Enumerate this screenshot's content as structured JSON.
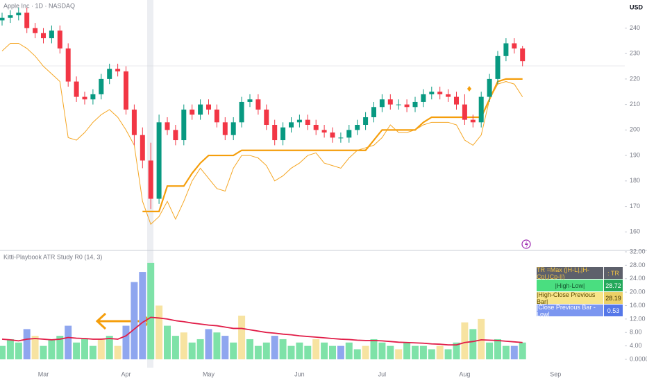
{
  "chart_data": [
    {
      "type": "candlestick",
      "title": "Apple Inc · 1D · NASDAQ",
      "y_axis_label": "USD",
      "up_color": "#089981",
      "down_color": "#f23645",
      "ylim": [
        153,
        251
      ],
      "yticks": [
        160,
        170,
        180,
        190,
        200,
        210,
        220,
        230,
        240
      ],
      "open": [
        243,
        244,
        245,
        246,
        240,
        238,
        236,
        239,
        232,
        219,
        213,
        212,
        214,
        220,
        224,
        223,
        208,
        198,
        188,
        173,
        203,
        200,
        196,
        208,
        206,
        210,
        208,
        203,
        198,
        203,
        211,
        212,
        208,
        202,
        196,
        201,
        203,
        204,
        202,
        200,
        199,
        197,
        197,
        200,
        202,
        205,
        209,
        212,
        210,
        210,
        209,
        211,
        214,
        215,
        214,
        213,
        210,
        204,
        203,
        213,
        220,
        229,
        234,
        232,
        null,
        null,
        null,
        null
      ],
      "high": [
        246,
        247,
        248,
        248,
        242,
        240,
        241,
        241,
        234,
        221,
        215,
        216,
        222,
        226,
        226,
        225,
        210,
        201,
        195,
        206,
        205,
        202,
        210,
        210,
        212,
        212,
        210,
        205,
        205,
        213,
        214,
        214,
        210,
        204,
        203,
        205,
        206,
        206,
        204,
        202,
        201,
        199,
        202,
        204,
        207,
        211,
        214,
        214,
        212,
        212,
        213,
        216,
        217,
        217,
        216,
        215,
        214,
        206,
        215,
        222,
        231,
        236,
        236,
        233,
        null,
        null,
        null,
        null
      ],
      "low": [
        241,
        242,
        243,
        238,
        236,
        234,
        234,
        230,
        217,
        211,
        210,
        210,
        212,
        218,
        221,
        206,
        194,
        185,
        169,
        171,
        198,
        194,
        194,
        204,
        204,
        206,
        201,
        196,
        196,
        201,
        209,
        206,
        200,
        194,
        194,
        199,
        201,
        200,
        198,
        197,
        195,
        195,
        195,
        198,
        200,
        203,
        207,
        208,
        208,
        207,
        207,
        209,
        212,
        212,
        211,
        208,
        202,
        201,
        201,
        211,
        218,
        227,
        230,
        225,
        null,
        null,
        null,
        null
      ],
      "close": [
        244,
        245,
        246,
        240,
        238,
        236,
        239,
        232,
        219,
        213,
        212,
        214,
        220,
        224,
        223,
        208,
        198,
        188,
        173,
        203,
        200,
        196,
        208,
        206,
        210,
        208,
        203,
        198,
        203,
        211,
        212,
        208,
        202,
        196,
        201,
        203,
        204,
        202,
        200,
        199,
        197,
        197,
        200,
        202,
        205,
        209,
        212,
        210,
        210,
        209,
        211,
        214,
        215,
        214,
        213,
        210,
        204,
        203,
        213,
        220,
        229,
        234,
        232,
        227,
        null,
        null,
        null,
        null
      ],
      "series": [
        {
          "color": "#f59e0b",
          "width": 2.2,
          "values": [
            null,
            null,
            null,
            null,
            null,
            null,
            null,
            null,
            null,
            null,
            null,
            null,
            null,
            null,
            null,
            null,
            null,
            168,
            168,
            168,
            178,
            178,
            178,
            183,
            187,
            190,
            190,
            190,
            190,
            192,
            192,
            192,
            192,
            192,
            192,
            192,
            192,
            192,
            192,
            192,
            192,
            192,
            192,
            192,
            192,
            196,
            200,
            200,
            200,
            200,
            200,
            203,
            205,
            205,
            205,
            205,
            205,
            205,
            205,
            212,
            219,
            220,
            220,
            220,
            null,
            null,
            null,
            null
          ]
        },
        {
          "color": "#f5a623",
          "width": 1,
          "values": [
            231,
            234,
            234,
            232,
            229,
            225,
            222,
            219,
            197,
            196,
            199,
            203,
            206,
            208,
            205,
            200,
            194,
            172,
            163,
            166,
            172,
            165,
            172,
            180,
            185,
            181,
            177,
            176,
            185,
            190,
            190,
            189,
            186,
            180,
            182,
            185,
            187,
            190,
            191,
            187,
            186,
            185,
            189,
            192,
            193,
            194,
            197,
            202,
            199,
            199,
            200,
            202,
            203,
            203,
            203,
            202,
            196,
            194,
            198,
            212,
            218,
            219,
            218,
            213,
            null,
            null,
            null,
            null
          ]
        }
      ]
    },
    {
      "type": "bar",
      "title": "Kitti-Playbook ATR Study R0 (14, 3)",
      "categories": [
        null,
        null,
        null,
        null,
        null,
        "Mar",
        null,
        null,
        null,
        null,
        null,
        null,
        null,
        null,
        null,
        "Apr",
        null,
        null,
        null,
        null,
        null,
        null,
        null,
        null,
        null,
        "May",
        null,
        null,
        null,
        null,
        null,
        null,
        null,
        null,
        null,
        null,
        "Jun",
        null,
        null,
        null,
        null,
        null,
        null,
        null,
        null,
        null,
        "Jul",
        null,
        null,
        null,
        null,
        null,
        null,
        null,
        null,
        null,
        "Aug",
        null,
        null,
        null,
        null,
        null,
        null,
        null,
        null,
        null,
        null,
        "Sep"
      ],
      "ylim": [
        0,
        32
      ],
      "yticks": [
        {
          "value": 0,
          "label": "0.0000"
        },
        {
          "value": 4,
          "label": "4.00"
        },
        {
          "value": 8,
          "label": "8.00"
        },
        {
          "value": 12,
          "label": "12.00"
        },
        {
          "value": 16,
          "label": "16.00"
        },
        {
          "value": 20,
          "label": "20.00"
        },
        {
          "value": 24,
          "label": "24.00"
        },
        {
          "value": 28,
          "label": "28.00"
        },
        {
          "value": 32,
          "label": "32.00"
        }
      ],
      "values": [
        4,
        6,
        5,
        9,
        7,
        4,
        6,
        7,
        10,
        5,
        6,
        4,
        6,
        7,
        4,
        10,
        23,
        26,
        28.72,
        16,
        10,
        7,
        8,
        5,
        6,
        9,
        8,
        7,
        5,
        13,
        6,
        4,
        5,
        7,
        6,
        4,
        5,
        4,
        6,
        5,
        4,
        4,
        5,
        3,
        4,
        6,
        5,
        4,
        3,
        5,
        4,
        4,
        3,
        4,
        3,
        5,
        11,
        9,
        12,
        5,
        6,
        4,
        4,
        5,
        null,
        null,
        null,
        null
      ],
      "colors": [
        "#7ee2a8",
        "#7ee2a8",
        "#7ee2a8",
        "#8fa6ef",
        "#f7e3a1",
        "#7ee2a8",
        "#7ee2a8",
        "#7ee2a8",
        "#8fa6ef",
        "#7ee2a8",
        "#7ee2a8",
        "#7ee2a8",
        "#f7e3a1",
        "#7ee2a8",
        "#f7e3a1",
        "#8fa6ef",
        "#8fa6ef",
        "#8fa6ef",
        "#7ee2a8",
        "#f7e3a1",
        "#7ee2a8",
        "#7ee2a8",
        "#f7e3a1",
        "#7ee2a8",
        "#7ee2a8",
        "#8fa6ef",
        "#7ee2a8",
        "#8fa6ef",
        "#7ee2a8",
        "#f7e3a1",
        "#7ee2a8",
        "#7ee2a8",
        "#7ee2a8",
        "#8fa6ef",
        "#7ee2a8",
        "#7ee2a8",
        "#7ee2a8",
        "#7ee2a8",
        "#f7e3a1",
        "#7ee2a8",
        "#7ee2a8",
        "#8fa6ef",
        "#7ee2a8",
        "#7ee2a8",
        "#f7e3a1",
        "#7ee2a8",
        "#7ee2a8",
        "#7ee2a8",
        "#f7e3a1",
        "#7ee2a8",
        "#7ee2a8",
        "#7ee2a8",
        "#7ee2a8",
        "#f7e3a1",
        "#7ee2a8",
        "#7ee2a8",
        "#f7e3a1",
        "#7ee2a8",
        "#f7e3a1",
        "#7ee2a8",
        "#7ee2a8",
        "#7ee2a8",
        "#8fa6ef",
        "#7ee2a8",
        null,
        null,
        null,
        null
      ],
      "series": [
        {
          "color": "#e11d48",
          "values": [
            6,
            5.8,
            5.5,
            6,
            6.2,
            6,
            5.8,
            6,
            6.5,
            6.3,
            6.2,
            6,
            6,
            6.2,
            6,
            7,
            9,
            11,
            12.5,
            12.3,
            12,
            11.5,
            11.2,
            10.8,
            10.5,
            10.2,
            10,
            9.6,
            9.2,
            9.2,
            8.8,
            8.4,
            8,
            7.8,
            7.5,
            7.3,
            7,
            6.8,
            6.6,
            6.4,
            6.2,
            6,
            5.9,
            5.7,
            5.6,
            5.6,
            5.5,
            5.3,
            5.1,
            5,
            4.9,
            4.8,
            4.6,
            4.5,
            4.3,
            4.3,
            5,
            5.3,
            5.8,
            5.7,
            5.6,
            5.4,
            5.2,
            5,
            null,
            null,
            null,
            null
          ]
        }
      ],
      "table": {
        "header": [
          "TR =Max (|H-L|,|H-Cp|,|Cp-l|)",
          ": TR"
        ],
        "rows": [
          [
            "|High-Low|",
            28.72
          ],
          [
            "|High-Close Previous Bar|",
            28.19
          ],
          [
            "|Close Previous Bar - Low|",
            0.53
          ]
        ]
      }
    }
  ]
}
